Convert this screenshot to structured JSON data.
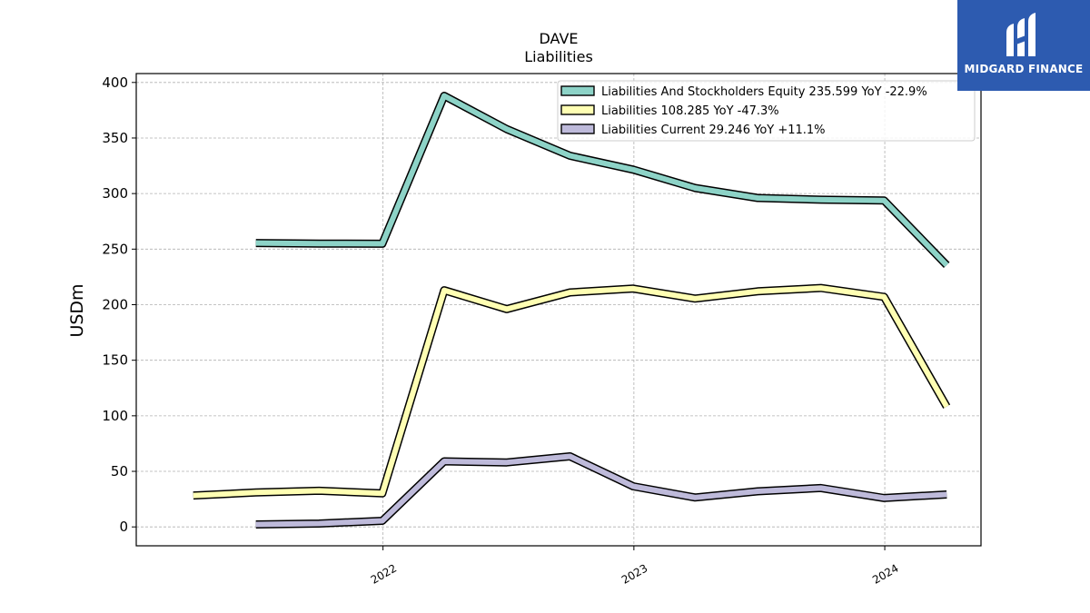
{
  "brand": {
    "name": "MIDGARD FINANCE",
    "accent": "#2d5bb0"
  },
  "chart_data": {
    "type": "line",
    "title": "DAVE",
    "subtitle": "Liabilities",
    "ylabel": "USDm",
    "xlabel": "",
    "ylim": [
      -17,
      408
    ],
    "xlim": [
      "2021-01-07",
      "2024-05-20"
    ],
    "yticks": [
      0,
      50,
      100,
      150,
      200,
      250,
      300,
      350,
      400
    ],
    "xticks": [
      {
        "date": "2022-01-01",
        "label": "2022"
      },
      {
        "date": "2023-01-01",
        "label": "2023"
      },
      {
        "date": "2024-01-01",
        "label": "2024"
      }
    ],
    "grid": true,
    "legend_position": "top-right",
    "series": [
      {
        "name": "Liabilities And Stockholders Equity  235.599 YoY -22.9%",
        "color": "#8dd3c7",
        "points": [
          [
            "2021-06-30",
            255.5
          ],
          [
            "2021-09-30",
            255
          ],
          [
            "2021-12-31",
            254.8
          ],
          [
            "2022-03-31",
            388
          ],
          [
            "2022-06-30",
            358
          ],
          [
            "2022-09-30",
            334
          ],
          [
            "2022-12-31",
            321.5
          ],
          [
            "2023-03-31",
            305
          ],
          [
            "2023-06-30",
            296
          ],
          [
            "2023-09-30",
            294.5
          ],
          [
            "2023-12-31",
            293.8
          ],
          [
            "2024-03-31",
            235.6
          ]
        ]
      },
      {
        "name": "Liabilities  108.285 YoY -47.3%",
        "color": "#ffffb3",
        "points": [
          [
            "2021-03-31",
            28.3
          ],
          [
            "2021-06-30",
            31
          ],
          [
            "2021-09-30",
            32.5
          ],
          [
            "2021-12-31",
            30.2
          ],
          [
            "2022-03-31",
            213
          ],
          [
            "2022-06-30",
            196
          ],
          [
            "2022-09-30",
            211
          ],
          [
            "2022-12-31",
            214.5
          ],
          [
            "2023-03-31",
            205.5
          ],
          [
            "2023-06-30",
            212
          ],
          [
            "2023-09-30",
            215
          ],
          [
            "2023-12-31",
            207
          ],
          [
            "2024-03-31",
            108.3
          ]
        ]
      },
      {
        "name": "Liabilities Current  29.246 YoY +11.1%",
        "color": "#bebada",
        "points": [
          [
            "2021-06-30",
            2.2
          ],
          [
            "2021-09-30",
            3
          ],
          [
            "2021-12-31",
            5.5
          ],
          [
            "2022-03-31",
            59
          ],
          [
            "2022-06-30",
            58
          ],
          [
            "2022-09-30",
            63.5
          ],
          [
            "2022-12-31",
            36.5
          ],
          [
            "2023-03-31",
            26.5
          ],
          [
            "2023-06-30",
            32
          ],
          [
            "2023-09-30",
            35
          ],
          [
            "2023-12-31",
            26
          ],
          [
            "2024-03-31",
            29.2
          ]
        ]
      }
    ]
  }
}
